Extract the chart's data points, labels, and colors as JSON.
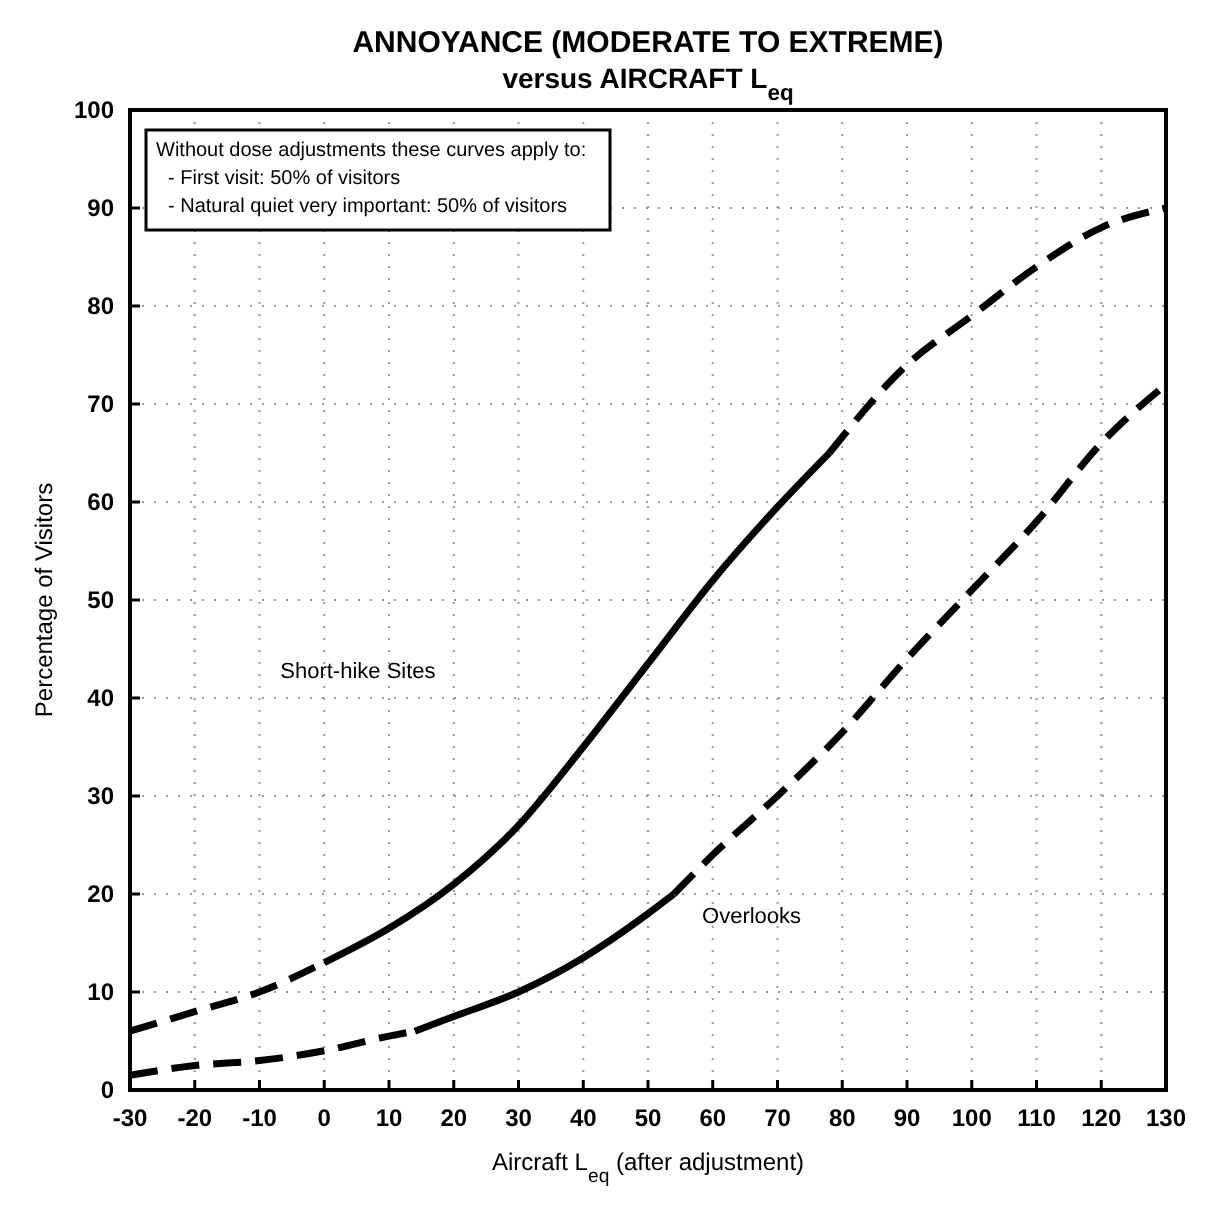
{
  "chart_data": {
    "type": "line",
    "title": "ANNOYANCE (MODERATE TO EXTREME)",
    "subtitle": "versus AIRCRAFT  L$_{eq}$",
    "xlabel": "Aircraft L$_{eq}$ (after adjustment)",
    "ylabel": "Percentage of Visitors",
    "xlim": [
      -30,
      130
    ],
    "xticks": [
      -30,
      -20,
      -10,
      0,
      10,
      20,
      30,
      40,
      50,
      60,
      70,
      80,
      90,
      100,
      110,
      120,
      130
    ],
    "ylim": [
      0,
      100
    ],
    "yticks": [
      0,
      10,
      20,
      30,
      40,
      50,
      60,
      70,
      80,
      90,
      100
    ],
    "grid": true,
    "marker": "none",
    "series": [
      {
        "color": "#000000",
        "line_style": "dashed",
        "x": [
          -30,
          -20,
          -10,
          0
        ],
        "values": [
          6,
          8,
          10,
          13
        ]
      },
      {
        "color": "#000000",
        "line_style": "solid",
        "x": [
          0,
          10,
          20,
          30,
          40,
          50,
          60,
          70,
          78
        ],
        "values": [
          13,
          16.5,
          21,
          27,
          35,
          43.5,
          52,
          59.5,
          65
        ]
      },
      {
        "color": "#000000",
        "line_style": "dashed",
        "x": [
          78,
          90,
          100,
          110,
          120,
          130
        ],
        "values": [
          65,
          74,
          79,
          84,
          88,
          90
        ]
      },
      {
        "color": "#000000",
        "line_style": "dashed",
        "x": [
          -30,
          -20,
          -10,
          0,
          10,
          14
        ],
        "values": [
          1.5,
          2.5,
          3,
          4,
          5.5,
          6
        ]
      },
      {
        "color": "#000000",
        "line_style": "solid",
        "x": [
          14,
          20,
          30,
          40,
          50,
          54
        ],
        "values": [
          6,
          7.5,
          10,
          13.5,
          18,
          20
        ]
      },
      {
        "color": "#000000",
        "line_style": "dashed",
        "x": [
          54,
          60,
          70,
          80,
          90,
          100,
          110,
          120,
          130
        ],
        "values": [
          20,
          24,
          30,
          36.5,
          44,
          51,
          58,
          66,
          72
        ]
      }
    ],
    "annotations": [
      "Without dose adjustments these curves apply to:",
      "-  First visit:  50% of visitors",
      "-  Natural quiet very important:  50% of visitors",
      "Short-hike Sites",
      "Overlooks"
    ]
  }
}
